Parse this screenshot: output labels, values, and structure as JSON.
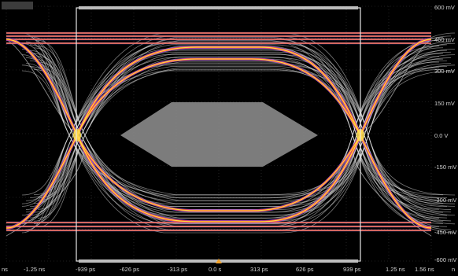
{
  "y_axis": {
    "labels": [
      "600 mV",
      "450 mV",
      "300 mV",
      "150 mV",
      "0.0 V",
      "-150 mV",
      "-300 mV",
      "-450 mV",
      "-600 mV"
    ]
  },
  "x_axis": {
    "labels": [
      "ns",
      "-1.25 ns",
      "-939 ps",
      "-626 ps",
      "-313 ps",
      "0.0 s",
      "313 ps",
      "626 ps",
      "939 ps",
      "1.25 ns",
      "1.56 ns",
      "n"
    ]
  },
  "colors": {
    "background": "#000000",
    "grid": "#3a3a3a",
    "trace_gray": "#d8d8d8",
    "trace_yellow": "#ffe14a",
    "trace_orange": "#ff8a1e",
    "trace_red": "#ff2a2a",
    "trace_magenta": "#d04bd8",
    "trace_blue": "#6a6cff",
    "mask": "#8a8a8a",
    "trigger_marker": "#f2a22a"
  }
}
